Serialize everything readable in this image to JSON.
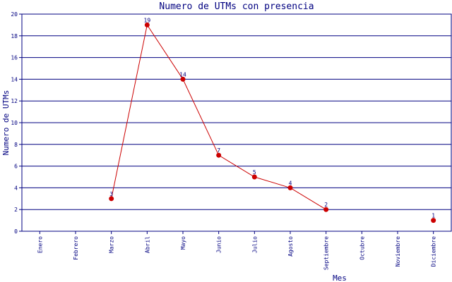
{
  "chart_data": {
    "type": "line",
    "title": "Numero de UTMs con presencia",
    "xlabel": "Mes",
    "ylabel": "Numero de UTMs",
    "ylim": [
      0,
      20
    ],
    "yticks": [
      0,
      2,
      4,
      6,
      8,
      10,
      12,
      14,
      16,
      18,
      20
    ],
    "grid": "horizontal",
    "colors": {
      "line": "#cc0000",
      "marker": "#cc0000",
      "grid": "#000080",
      "text": "#000080"
    },
    "categories": [
      "Enero",
      "Febrero",
      "Marzo",
      "Abril",
      "Mayo",
      "Junio",
      "Julio",
      "Agosto",
      "Septiembre",
      "Octubre",
      "Noviembre",
      "Diciembre"
    ],
    "series": [
      {
        "values": [
          null,
          null,
          3,
          19,
          14,
          7,
          5,
          4,
          2,
          null,
          null,
          1
        ]
      }
    ]
  }
}
